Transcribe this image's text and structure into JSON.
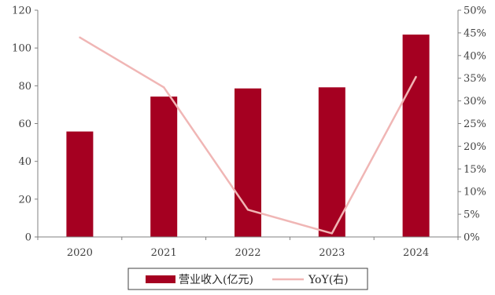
{
  "chart_data": {
    "type": "bar",
    "title": "",
    "xlabel": "",
    "ylabel": "",
    "categories": [
      "2020",
      "2021",
      "2022",
      "2023",
      "2024"
    ],
    "series": [
      {
        "name": "营业收入(亿元)",
        "type": "bar",
        "axis": "left",
        "color": "#a50021",
        "values": [
          55.8,
          74.3,
          78.6,
          79.2,
          107.1
        ]
      },
      {
        "name": "YoY(右)",
        "type": "line",
        "axis": "right",
        "color": "#f0b6b5",
        "values": [
          44.0,
          33.0,
          6.0,
          0.8,
          35.3
        ]
      }
    ],
    "ylim": [
      0,
      120
    ],
    "yticks": [
      "0",
      "20",
      "40",
      "60",
      "80",
      "100",
      "120"
    ],
    "y2lim": [
      0,
      50
    ],
    "y2ticks": [
      "0%",
      "5%",
      "10%",
      "15%",
      "20%",
      "25%",
      "30%",
      "35%",
      "40%",
      "45%",
      "50%"
    ],
    "grid": false,
    "legend_position": "bottom"
  }
}
